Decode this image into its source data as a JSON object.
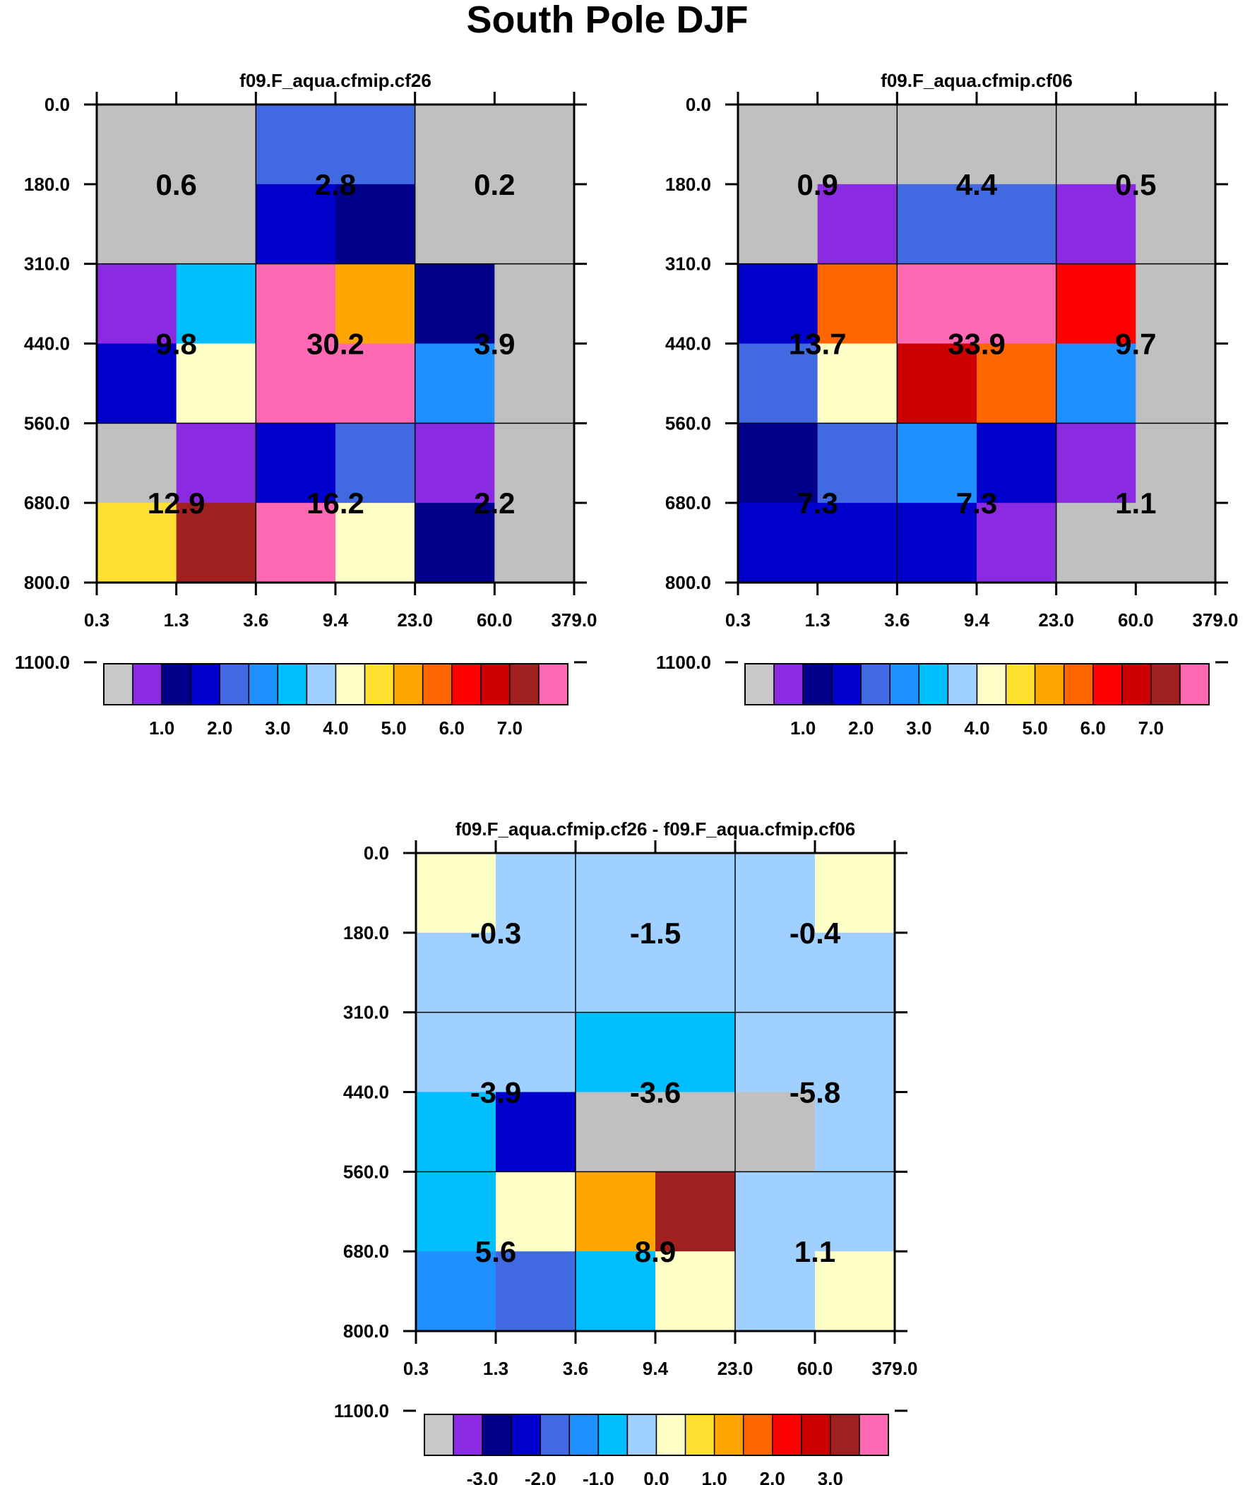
{
  "title": "South Pole DJF",
  "colors": {
    "palette": [
      "#c0c0c0",
      "#8a2be2",
      "#00008b",
      "#0000cd",
      "#4169e1",
      "#1e90ff",
      "#00bfff",
      "#a0d0ff",
      "#ffffc8",
      "#ffe030",
      "#ffa500",
      "#ff6600",
      "#ff0000",
      "#cc0000",
      "#a02020",
      "#ff69b4"
    ],
    "colorbar": [
      "#c8c8c8",
      "#8a2be2",
      "#00008b",
      "#0000cd",
      "#4169e1",
      "#1e90ff",
      "#00bfff",
      "#a0d0ff",
      "#ffffc8",
      "#ffe030",
      "#ffa500",
      "#ff6600",
      "#ff0000",
      "#cc0000",
      "#a02020",
      "#ff69b4"
    ]
  },
  "chart_data": [
    {
      "type": "heatmap",
      "title": "f09.F_aqua.cfmip.cf26",
      "x_ticks": [
        "0.3",
        "1.3",
        "3.6",
        "9.4",
        "23.0",
        "60.0",
        "379.0"
      ],
      "y_ticks": [
        "0.0",
        "180.0",
        "310.0",
        "440.0",
        "560.0",
        "680.0",
        "800.0",
        "1100.0"
      ],
      "cells": [
        [
          0,
          0,
          4,
          4,
          0,
          0
        ],
        [
          0,
          0,
          3,
          2,
          0,
          0
        ],
        [
          1,
          6,
          15,
          10,
          2,
          0
        ],
        [
          3,
          8,
          15,
          15,
          5,
          0
        ],
        [
          0,
          1,
          3,
          4,
          1,
          0
        ],
        [
          9,
          14,
          15,
          8,
          2,
          0
        ]
      ],
      "box_values": [
        [
          "0.6",
          "2.8",
          "0.2"
        ],
        [
          "9.8",
          "30.2",
          "3.9"
        ],
        [
          "12.9",
          "16.2",
          "2.2"
        ]
      ],
      "colorbar_labels": [
        "1.0",
        "2.0",
        "3.0",
        "4.0",
        "5.0",
        "6.0",
        "7.0"
      ]
    },
    {
      "type": "heatmap",
      "title": "f09.F_aqua.cfmip.cf06",
      "x_ticks": [
        "0.3",
        "1.3",
        "3.6",
        "9.4",
        "23.0",
        "60.0",
        "379.0"
      ],
      "y_ticks": [
        "0.0",
        "180.0",
        "310.0",
        "440.0",
        "560.0",
        "680.0",
        "800.0",
        "1100.0"
      ],
      "cells": [
        [
          0,
          0,
          0,
          0,
          0,
          0
        ],
        [
          0,
          1,
          4,
          4,
          1,
          0
        ],
        [
          3,
          11,
          15,
          15,
          12,
          0
        ],
        [
          4,
          8,
          13,
          11,
          5,
          0
        ],
        [
          2,
          4,
          5,
          3,
          1,
          0
        ],
        [
          3,
          3,
          3,
          1,
          0,
          0
        ]
      ],
      "box_values": [
        [
          "0.9",
          "4.4",
          "0.5"
        ],
        [
          "13.7",
          "33.9",
          "9.7"
        ],
        [
          "7.3",
          "7.3",
          "1.1"
        ]
      ],
      "colorbar_labels": [
        "1.0",
        "2.0",
        "3.0",
        "4.0",
        "5.0",
        "6.0",
        "7.0"
      ]
    },
    {
      "type": "heatmap",
      "title": "f09.F_aqua.cfmip.cf26 - f09.F_aqua.cfmip.cf06",
      "x_ticks": [
        "0.3",
        "1.3",
        "3.6",
        "9.4",
        "23.0",
        "60.0",
        "379.0"
      ],
      "y_ticks": [
        "0.0",
        "180.0",
        "310.0",
        "440.0",
        "560.0",
        "680.0",
        "800.0",
        "1100.0"
      ],
      "cells": [
        [
          8,
          7,
          7,
          7,
          7,
          8
        ],
        [
          7,
          7,
          7,
          7,
          7,
          7
        ],
        [
          7,
          7,
          6,
          6,
          7,
          7
        ],
        [
          6,
          3,
          0,
          0,
          0,
          7
        ],
        [
          6,
          8,
          10,
          14,
          7,
          7
        ],
        [
          5,
          4,
          6,
          8,
          7,
          8
        ]
      ],
      "box_values": [
        [
          "-0.3",
          "-1.5",
          "-0.4"
        ],
        [
          "-3.9",
          "-3.6",
          "-5.8"
        ],
        [
          "5.6",
          "8.9",
          "1.1"
        ]
      ],
      "colorbar_labels": [
        "-3.0",
        "-2.0",
        "-1.0",
        "0.0",
        "1.0",
        "2.0",
        "3.0"
      ]
    }
  ]
}
